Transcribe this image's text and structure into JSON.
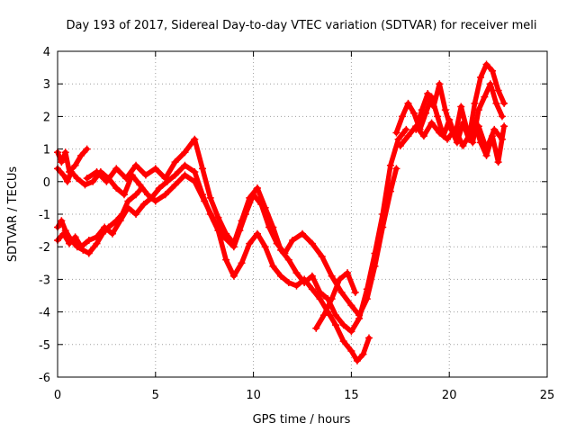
{
  "chart_data": {
    "type": "scatter",
    "title": "Day 193 of 2017, Sidereal Day-to-day VTEC variation (SDTVAR) for receiver meli",
    "xlabel": "GPS time / hours",
    "ylabel": "SDTVAR / TECUs",
    "xlim": [
      0,
      25
    ],
    "ylim": [
      -6,
      4
    ],
    "xticks": [
      "0",
      "5",
      "10",
      "15",
      "20",
      "25"
    ],
    "yticks": [
      "-6",
      "-5",
      "-4",
      "-3",
      "-2",
      "-1",
      "0",
      "1",
      "2",
      "3",
      "4"
    ],
    "grid": true,
    "marker": "plus",
    "color": "#ff0000",
    "series": [
      {
        "x": [
          0.0,
          0.3,
          0.5,
          0.7,
          1.0,
          1.4,
          1.8,
          2.2,
          2.6,
          3.0,
          3.4,
          3.8,
          4.2,
          4.6,
          5.0,
          5.5,
          6.0,
          6.5,
          7.0,
          7.5,
          8.0,
          8.5,
          9.0,
          9.3,
          9.6,
          10.0,
          10.4,
          10.8,
          11.2,
          11.6,
          12.0,
          12.5,
          13.0,
          13.5,
          14.0,
          14.5,
          15.0,
          15.4,
          15.8,
          16.2,
          16.6,
          17.0,
          17.3
        ],
        "y": [
          0.4,
          0.2,
          0.0,
          0.3,
          0.1,
          -0.1,
          0.0,
          0.3,
          0.1,
          -0.2,
          -0.4,
          0.2,
          -0.1,
          -0.4,
          -0.6,
          -0.4,
          -0.1,
          0.2,
          0.0,
          -0.6,
          -1.2,
          -1.7,
          -2.0,
          -1.5,
          -1.0,
          -0.4,
          -0.7,
          -1.4,
          -1.9,
          -2.2,
          -1.8,
          -1.6,
          -1.9,
          -2.3,
          -2.9,
          -3.4,
          -3.8,
          -4.1,
          -3.6,
          -2.6,
          -1.4,
          -0.3,
          0.4
        ]
      },
      {
        "x": [
          0.0,
          0.3,
          0.6,
          0.9,
          1.2,
          1.6,
          2.0,
          2.4,
          2.8,
          3.2,
          3.6,
          4.0,
          4.4,
          4.8,
          5.2,
          5.6,
          6.0,
          6.5,
          7.0,
          7.4,
          7.8,
          8.2,
          8.6,
          9.0,
          9.4,
          9.8,
          10.2,
          10.6,
          11.0,
          11.4,
          11.8,
          12.2,
          12.6,
          13.0,
          13.4,
          13.8,
          14.2,
          14.6,
          15.0,
          15.3,
          15.6,
          15.9
        ],
        "y": [
          -1.8,
          -1.6,
          -1.9,
          -1.7,
          -2.0,
          -1.8,
          -1.7,
          -1.4,
          -1.6,
          -1.2,
          -0.8,
          -1.0,
          -0.7,
          -0.5,
          -0.2,
          0.0,
          0.2,
          0.5,
          0.3,
          -0.4,
          -1.0,
          -1.5,
          -2.4,
          -2.9,
          -2.5,
          -1.9,
          -1.6,
          -2.0,
          -2.6,
          -2.9,
          -3.1,
          -3.2,
          -3.0,
          -3.3,
          -3.6,
          -4.0,
          -4.4,
          -4.9,
          -5.2,
          -5.5,
          -5.3,
          -4.8
        ]
      },
      {
        "x": [
          0.0,
          0.2,
          0.4,
          0.7,
          1.0,
          1.3,
          1.6,
          2.0,
          2.3,
          2.6,
          3.0,
          3.3,
          3.6,
          4.0,
          4.3
        ],
        "y": [
          -1.4,
          -1.2,
          -1.5,
          -1.8,
          -2.0,
          -2.1,
          -2.2,
          -1.9,
          -1.6,
          -1.4,
          -1.2,
          -1.0,
          -0.6,
          -0.4,
          -0.2
        ]
      },
      {
        "x": [
          0.0,
          0.2,
          0.4,
          0.6,
          0.9,
          1.2,
          1.5
        ],
        "y": [
          0.9,
          0.6,
          0.9,
          0.3,
          0.5,
          0.8,
          1.0
        ]
      },
      {
        "x": [
          1.5,
          2.0,
          2.5,
          3.0,
          3.5,
          4.0,
          4.5,
          5.0,
          5.5,
          6.0,
          6.5,
          7.0,
          7.4,
          7.8,
          8.2,
          8.6,
          9.0,
          9.4,
          9.8,
          10.2,
          10.6,
          11.0,
          11.4,
          11.8,
          12.2,
          12.6,
          13.0,
          13.4,
          13.8,
          14.2,
          14.6,
          15.0,
          15.4,
          15.8,
          16.2,
          16.6,
          17.0,
          17.4,
          17.8
        ],
        "y": [
          0.1,
          0.3,
          0.0,
          0.4,
          0.1,
          0.5,
          0.2,
          0.4,
          0.1,
          0.6,
          0.9,
          1.3,
          0.4,
          -0.5,
          -1.1,
          -1.6,
          -1.9,
          -1.2,
          -0.5,
          -0.2,
          -0.8,
          -1.4,
          -2.1,
          -2.4,
          -2.8,
          -3.1,
          -2.9,
          -3.4,
          -3.6,
          -4.1,
          -4.4,
          -4.6,
          -4.2,
          -3.3,
          -2.2,
          -1.0,
          0.5,
          1.3,
          1.6
        ]
      },
      {
        "x": [
          13.2,
          13.6,
          14.0,
          14.4,
          14.8,
          15.2
        ],
        "y": [
          -4.5,
          -4.1,
          -3.6,
          -3.0,
          -2.8,
          -3.4
        ]
      },
      {
        "x": [
          17.3,
          17.6,
          17.9,
          18.2,
          18.5,
          18.8,
          19.1,
          19.4,
          19.7,
          20.0,
          20.3,
          20.6,
          20.9,
          21.2,
          21.5,
          21.8,
          22.1,
          22.4,
          22.7
        ],
        "y": [
          1.5,
          2.0,
          2.4,
          2.1,
          1.6,
          2.1,
          2.6,
          2.0,
          1.4,
          1.9,
          1.4,
          2.3,
          1.6,
          1.2,
          2.2,
          2.6,
          3.0,
          2.4,
          2.0
        ]
      },
      {
        "x": [
          18.3,
          18.6,
          18.9,
          19.2,
          19.5,
          19.8,
          20.1,
          20.4,
          20.7,
          21.0,
          21.3,
          21.6,
          21.9,
          22.2,
          22.5,
          22.8
        ],
        "y": [
          1.6,
          2.2,
          2.7,
          2.3,
          3.0,
          2.2,
          1.6,
          1.2,
          1.8,
          1.3,
          2.4,
          3.2,
          3.6,
          3.4,
          2.8,
          2.4
        ]
      },
      {
        "x": [
          17.5,
          17.9,
          18.3,
          18.7,
          19.1,
          19.5,
          19.9,
          20.3,
          20.7,
          21.1,
          21.5,
          21.9,
          22.3,
          22.7
        ],
        "y": [
          1.1,
          1.4,
          1.7,
          1.4,
          1.8,
          1.5,
          1.3,
          1.6,
          1.1,
          1.5,
          1.7,
          1.0,
          1.6,
          1.3
        ]
      },
      {
        "x": [
          21.3,
          21.6,
          21.9,
          22.2,
          22.5,
          22.8
        ],
        "y": [
          1.8,
          1.2,
          0.8,
          1.4,
          0.6,
          1.7
        ]
      }
    ]
  }
}
